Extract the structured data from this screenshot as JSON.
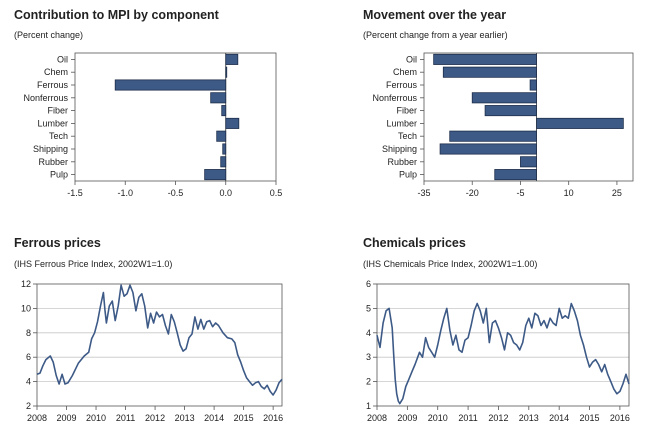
{
  "chart_data": [
    {
      "type": "bar",
      "orientation": "horizontal",
      "title": "Contribution to MPI by component",
      "subtitle": "(Percent change)",
      "categories": [
        "Oil",
        "Chem",
        "Ferrous",
        "Nonferrous",
        "Fiber",
        "Lumber",
        "Tech",
        "Shipping",
        "Rubber",
        "Pulp"
      ],
      "values": [
        0.12,
        0.01,
        -1.1,
        -0.15,
        -0.04,
        0.13,
        -0.09,
        -0.03,
        -0.05,
        -0.21
      ],
      "xlim": [
        -1.5,
        0.5
      ],
      "xticks": [
        "-1.5",
        "-1.0",
        "-0.5",
        "0.0",
        "0.5"
      ],
      "tick_values": [
        -1.5,
        -1.0,
        -0.5,
        0.0,
        0.5
      ],
      "bar_color": "#3d5a87"
    },
    {
      "type": "bar",
      "orientation": "horizontal",
      "title": "Movement over the year",
      "subtitle": "(Percent change from a year earlier)",
      "categories": [
        "Oil",
        "Chem",
        "Ferrous",
        "Nonferrous",
        "Fiber",
        "Lumber",
        "Tech",
        "Shipping",
        "Rubber",
        "Pulp"
      ],
      "values": [
        -32,
        -29,
        -2,
        -20,
        -16,
        27,
        -27,
        -30,
        -5,
        -13
      ],
      "xlim": [
        -35,
        30
      ],
      "xticks": [
        "-35",
        "-20",
        "-5",
        "10",
        "25"
      ],
      "tick_values": [
        -35,
        -20,
        -5,
        10,
        25
      ],
      "zero_value": 0,
      "bar_color": "#3d5a87"
    },
    {
      "type": "line",
      "title": "Ferrous prices",
      "subtitle": "(IHS Ferrous Price Index, 2002W1=1.0)",
      "ylim": [
        2,
        12
      ],
      "yticks": [
        "2",
        "4",
        "6",
        "8",
        "10",
        "12"
      ],
      "ytick_values": [
        2,
        4,
        6,
        8,
        10,
        12
      ],
      "xlim": [
        2008,
        2016.3
      ],
      "xticks": [
        "2008",
        "2009",
        "2010",
        "2011",
        "2012",
        "2013",
        "2014",
        "2015",
        "2016"
      ],
      "xtick_values": [
        2008,
        2009,
        2010,
        2011,
        2012,
        2013,
        2014,
        2015,
        2016
      ],
      "line_color": "#3d5a87",
      "x": [
        2008.0,
        2008.1,
        2008.2,
        2008.3,
        2008.45,
        2008.55,
        2008.65,
        2008.75,
        2008.85,
        2008.95,
        2009.05,
        2009.2,
        2009.4,
        2009.6,
        2009.75,
        2009.85,
        2009.95,
        2010.05,
        2010.15,
        2010.25,
        2010.3,
        2010.35,
        2010.45,
        2010.55,
        2010.65,
        2010.75,
        2010.85,
        2010.95,
        2011.05,
        2011.15,
        2011.25,
        2011.35,
        2011.45,
        2011.55,
        2011.65,
        2011.75,
        2011.85,
        2011.95,
        2012.05,
        2012.15,
        2012.25,
        2012.35,
        2012.45,
        2012.55,
        2012.65,
        2012.75,
        2012.85,
        2012.95,
        2013.05,
        2013.15,
        2013.25,
        2013.35,
        2013.45,
        2013.55,
        2013.65,
        2013.75,
        2013.85,
        2013.95,
        2014.05,
        2014.15,
        2014.3,
        2014.45,
        2014.6,
        2014.7,
        2014.8,
        2014.9,
        2015.0,
        2015.1,
        2015.2,
        2015.3,
        2015.4,
        2015.5,
        2015.6,
        2015.7,
        2015.8,
        2015.9,
        2016.0,
        2016.1,
        2016.2,
        2016.3
      ],
      "y": [
        4.6,
        4.7,
        5.3,
        5.8,
        6.1,
        5.6,
        4.5,
        3.8,
        4.6,
        3.8,
        3.9,
        4.5,
        5.5,
        6.1,
        6.4,
        7.5,
        8.0,
        8.9,
        10.2,
        11.3,
        9.9,
        8.8,
        10.2,
        10.6,
        9.0,
        10.2,
        11.9,
        11.0,
        11.2,
        11.9,
        11.3,
        9.8,
        10.9,
        11.2,
        10.2,
        8.4,
        9.6,
        8.8,
        9.7,
        9.3,
        9.5,
        8.6,
        7.9,
        9.5,
        8.9,
        8.0,
        7.0,
        6.5,
        6.7,
        7.6,
        7.9,
        9.3,
        8.3,
        9.1,
        8.3,
        8.9,
        9.0,
        8.5,
        8.8,
        8.6,
        8.0,
        7.6,
        7.5,
        7.2,
        6.2,
        5.6,
        4.9,
        4.3,
        4.0,
        3.7,
        3.9,
        4.0,
        3.6,
        3.4,
        3.7,
        3.2,
        2.9,
        3.3,
        3.9,
        4.2
      ]
    },
    {
      "type": "line",
      "title": "Chemicals prices",
      "subtitle": "(IHS Chemicals Price Index, 2002W1=1.00)",
      "ylim": [
        1,
        6
      ],
      "yticks": [
        "1",
        "2",
        "3",
        "4",
        "5",
        "6"
      ],
      "ytick_values": [
        1,
        2,
        3,
        4,
        5,
        6
      ],
      "xlim": [
        2008,
        2016.3
      ],
      "xticks": [
        "2008",
        "2009",
        "2010",
        "2011",
        "2012",
        "2013",
        "2014",
        "2015",
        "2016"
      ],
      "xtick_values": [
        2008,
        2009,
        2010,
        2011,
        2012,
        2013,
        2014,
        2015,
        2016
      ],
      "line_color": "#3d5a87",
      "x": [
        2008.0,
        2008.1,
        2008.2,
        2008.3,
        2008.4,
        2008.5,
        2008.55,
        2008.6,
        2008.65,
        2008.7,
        2008.75,
        2008.85,
        2008.95,
        2009.05,
        2009.15,
        2009.25,
        2009.4,
        2009.5,
        2009.6,
        2009.7,
        2009.8,
        2009.9,
        2010.0,
        2010.1,
        2010.2,
        2010.3,
        2010.4,
        2010.5,
        2010.6,
        2010.7,
        2010.8,
        2010.9,
        2011.0,
        2011.1,
        2011.2,
        2011.3,
        2011.4,
        2011.5,
        2011.6,
        2011.7,
        2011.8,
        2011.9,
        2012.0,
        2012.1,
        2012.2,
        2012.3,
        2012.4,
        2012.5,
        2012.6,
        2012.7,
        2012.8,
        2012.9,
        2013.0,
        2013.1,
        2013.2,
        2013.3,
        2013.4,
        2013.5,
        2013.6,
        2013.7,
        2013.8,
        2013.9,
        2014.0,
        2014.1,
        2014.2,
        2014.3,
        2014.4,
        2014.5,
        2014.6,
        2014.7,
        2014.8,
        2014.9,
        2015.0,
        2015.1,
        2015.2,
        2015.3,
        2015.4,
        2015.5,
        2015.6,
        2015.7,
        2015.8,
        2015.9,
        2016.0,
        2016.1,
        2016.2,
        2016.3
      ],
      "y": [
        3.9,
        3.4,
        4.4,
        4.9,
        5.0,
        4.2,
        3.1,
        2.1,
        1.5,
        1.2,
        1.1,
        1.3,
        1.8,
        2.1,
        2.4,
        2.7,
        3.2,
        3.0,
        3.8,
        3.4,
        3.2,
        3.0,
        3.5,
        4.1,
        4.6,
        5.0,
        4.1,
        3.5,
        3.9,
        3.3,
        3.2,
        3.7,
        3.8,
        4.3,
        4.9,
        5.2,
        4.9,
        4.4,
        5.0,
        3.6,
        4.4,
        4.5,
        4.2,
        3.8,
        3.3,
        4.0,
        3.9,
        3.6,
        3.5,
        3.3,
        3.6,
        4.3,
        4.6,
        4.2,
        4.8,
        4.7,
        4.3,
        4.5,
        4.2,
        4.6,
        4.4,
        4.3,
        5.0,
        4.6,
        4.7,
        4.6,
        5.2,
        4.9,
        4.5,
        3.9,
        3.5,
        3.0,
        2.6,
        2.8,
        2.9,
        2.7,
        2.4,
        2.7,
        2.3,
        2.0,
        1.7,
        1.5,
        1.6,
        1.9,
        2.3,
        1.9
      ]
    }
  ]
}
